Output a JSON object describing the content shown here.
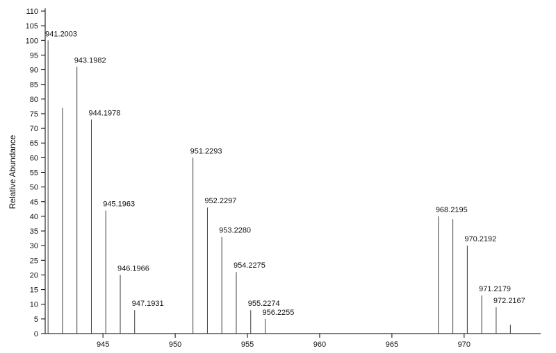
{
  "chart_data": {
    "type": "bar",
    "variant": "centroid-mass-spectrum",
    "title": "",
    "xlabel": "",
    "ylabel": "Relative Abundance",
    "xlim": [
      941.0,
      975.3
    ],
    "ylim": [
      0,
      110
    ],
    "x_ticks": [
      945,
      950,
      955,
      960,
      965,
      970
    ],
    "y_ticks": [
      0,
      5,
      10,
      15,
      20,
      25,
      30,
      35,
      40,
      45,
      50,
      55,
      60,
      65,
      70,
      75,
      80,
      85,
      90,
      95,
      100,
      105,
      110
    ],
    "grid": "off",
    "legend": "none",
    "peaks": [
      {
        "mz": 941.2003,
        "intensity": 100,
        "label": "941.2003"
      },
      {
        "mz": 942.2,
        "intensity": 77,
        "label": ""
      },
      {
        "mz": 943.1982,
        "intensity": 91,
        "label": "943.1982"
      },
      {
        "mz": 944.1978,
        "intensity": 73,
        "label": "944.1978"
      },
      {
        "mz": 945.1963,
        "intensity": 42,
        "label": "945.1963"
      },
      {
        "mz": 946.1966,
        "intensity": 20,
        "label": "946.1966"
      },
      {
        "mz": 947.1931,
        "intensity": 8,
        "label": "947.1931"
      },
      {
        "mz": 951.2293,
        "intensity": 60,
        "label": "951.2293"
      },
      {
        "mz": 952.2297,
        "intensity": 43,
        "label": "952.2297"
      },
      {
        "mz": 953.228,
        "intensity": 33,
        "label": "953.2280"
      },
      {
        "mz": 954.2275,
        "intensity": 21,
        "label": "954.2275"
      },
      {
        "mz": 955.2274,
        "intensity": 8,
        "label": "955.2274"
      },
      {
        "mz": 956.2255,
        "intensity": 5,
        "label": "956.2255"
      },
      {
        "mz": 968.2195,
        "intensity": 40,
        "label": "968.2195"
      },
      {
        "mz": 969.22,
        "intensity": 39,
        "label": ""
      },
      {
        "mz": 970.2192,
        "intensity": 30,
        "label": "970.2192"
      },
      {
        "mz": 971.2179,
        "intensity": 13,
        "label": "971.2179"
      },
      {
        "mz": 972.2167,
        "intensity": 9,
        "label": "972.2167"
      },
      {
        "mz": 973.2,
        "intensity": 3,
        "label": ""
      }
    ],
    "colors": {
      "axis": "#000000",
      "peak": "#3c3c3c",
      "label": "#000000",
      "background": "#ffffff"
    }
  }
}
